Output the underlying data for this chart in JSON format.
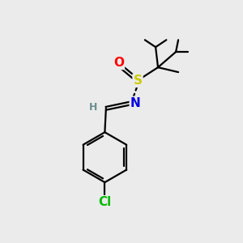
{
  "background_color": "#ebebeb",
  "atom_colors": {
    "C": "#000000",
    "H": "#6b8e8e",
    "N": "#0000e0",
    "O": "#ff0000",
    "S": "#cccc00",
    "Cl": "#00bb00"
  },
  "bond_color": "#000000",
  "bond_width": 1.6,
  "font_size_atom": 11,
  "font_size_h": 9,
  "fig_size": [
    3.0,
    3.0
  ],
  "dpi": 100,
  "xlim": [
    0,
    10
  ],
  "ylim": [
    0,
    10
  ]
}
